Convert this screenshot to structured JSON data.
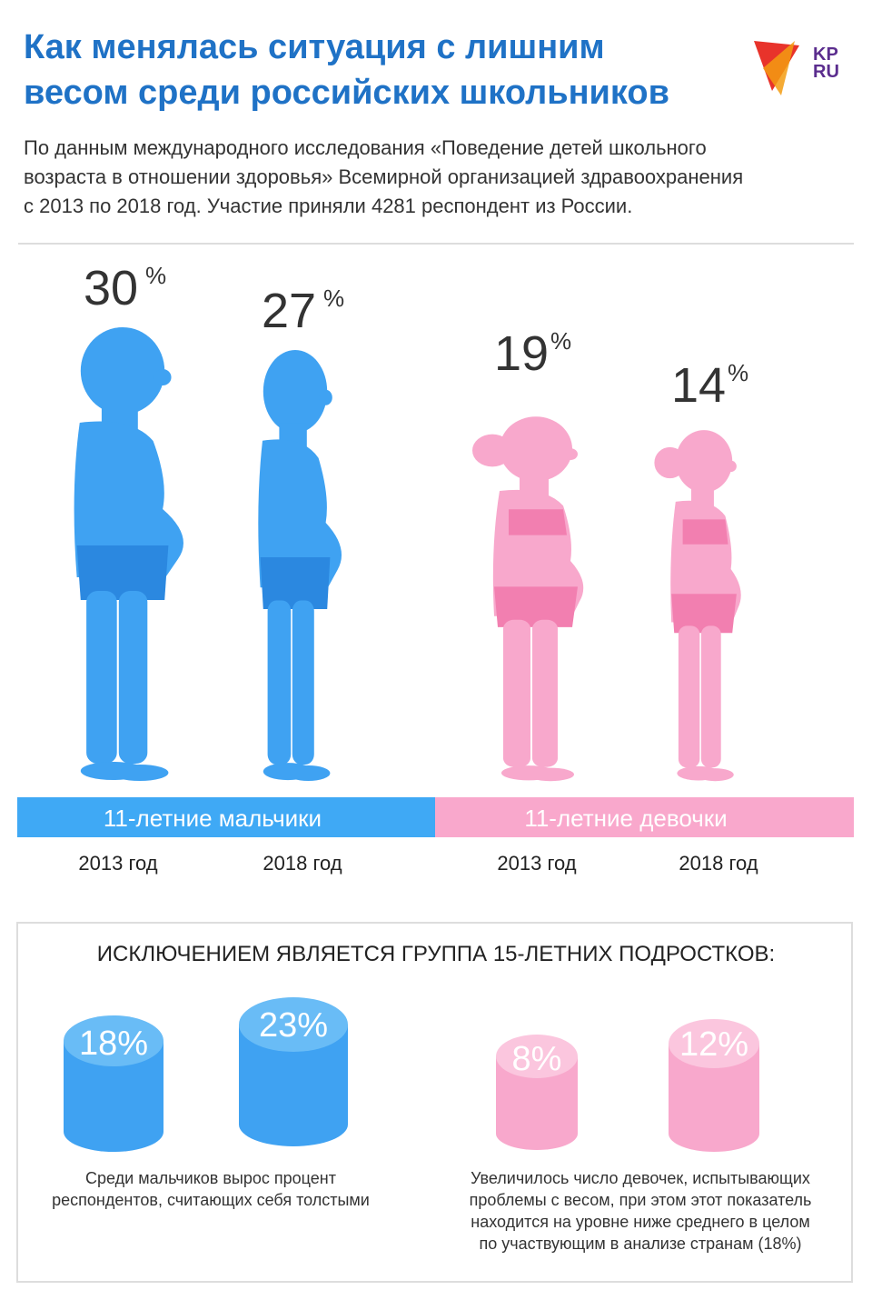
{
  "header": {
    "title": [
      "Как менялась ситуация с лишним",
      "весом среди российских школьников"
    ],
    "logo": [
      "KP",
      "RU"
    ],
    "subtitle": [
      "По данным международного исследования «Поведение детей школьного",
      "возраста в отношении здоровья» Всемирной организацией здравоохранения",
      "с 2013 по 2018 год. Участие приняли 4281 респондент из России."
    ]
  },
  "figures": [
    {
      "value": 30,
      "unit": "%"
    },
    {
      "value": 27,
      "unit": "%"
    },
    {
      "value": 19,
      "unit": "%"
    },
    {
      "value": 14,
      "unit": "%"
    }
  ],
  "groups": [
    "11-летние мальчики",
    "11-летние девочки"
  ],
  "years": [
    "2013 год",
    "2018 год",
    "2013 год",
    "2018 год"
  ],
  "exception": {
    "heading": "ИСКЛЮЧЕНИЕМ ЯВЛЯЕТСЯ ГРУППА 15-ЛЕТНИХ ПОДРОСТКОВ:",
    "cylinders": [
      "18%",
      "23%",
      "8%",
      "12%"
    ],
    "captions": [
      [
        "Среди мальчиков вырос процент",
        "респондентов, считающих себя толстыми"
      ],
      [
        "Увеличилось число девочек, испытывающих",
        "проблемы с весом, при этом этот показатель",
        "находится на уровне ниже среднего в целом",
        "по участвующим в анализе странам (18%)"
      ]
    ]
  }
}
